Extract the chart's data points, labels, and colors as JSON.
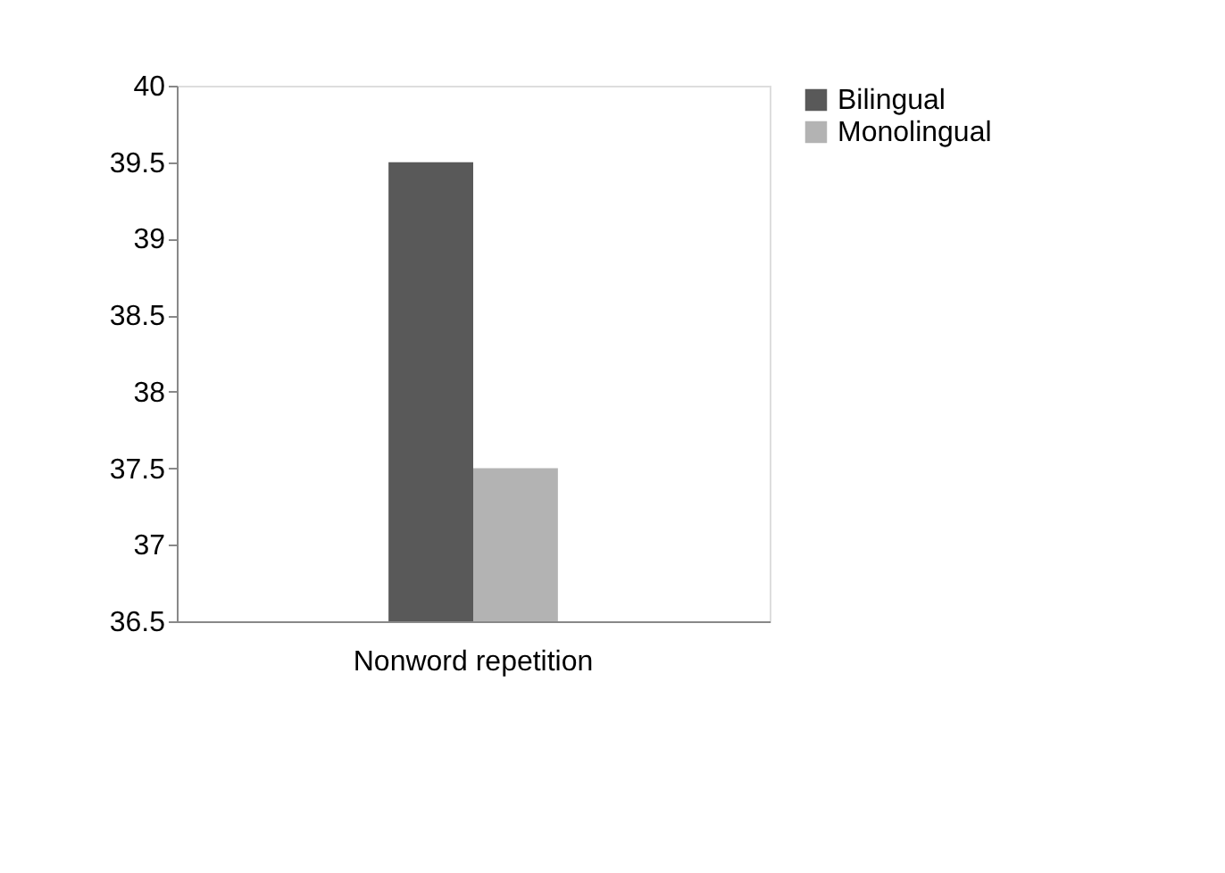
{
  "chart_data": {
    "type": "bar",
    "categories": [
      "Nonword repetition"
    ],
    "series": [
      {
        "name": "Bilingual",
        "color": "#595959",
        "values": [
          39.5
        ]
      },
      {
        "name": "Monolingual",
        "color": "#b3b3b3",
        "values": [
          37.5
        ]
      }
    ],
    "ylim": [
      36.5,
      40
    ],
    "yticks": [
      36.5,
      37,
      37.5,
      38,
      38.5,
      39,
      39.5,
      40
    ],
    "grid": false,
    "legend": "right"
  }
}
